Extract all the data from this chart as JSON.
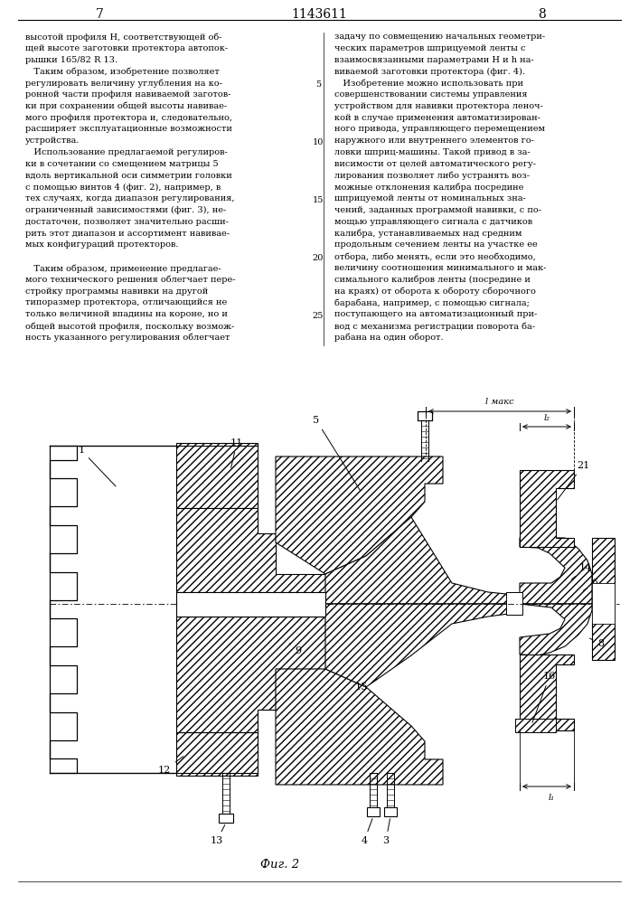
{
  "page_width": 7.07,
  "page_height": 10.0,
  "bg_color": "#ffffff",
  "header_page_left": "7",
  "header_center": "1143611",
  "header_page_right": "8",
  "col_left_lines": [
    "высотой профиля Н, соответствующей об-",
    "щей высоте заготовки протектора автопок-",
    "рышки 165/82 R 13.",
    "   Таким образом, изобретение позволяет",
    "регулировать величину углубления на ко-",
    "ронной части профиля навиваемой заготов-",
    "ки при сохранении общей высоты навивае-",
    "мого профиля протектора и, следовательно,",
    "расширяет эксплуатационные возможности",
    "устройства.",
    "   Использование предлагаемой регулиров-",
    "ки в сочетании со смещением матрицы 5",
    "вдоль вертикальной оси симметрии головки",
    "с помощью винтов 4 (фиг. 2), например, в",
    "тех случаях, когда диапазон регулирования,",
    "ограниченный зависимостями (фиг. 3), не-",
    "достаточен, позволяет значительно расши-",
    "рить этот диапазон и ассортимент навивае-",
    "мых конфигураций протекторов.",
    "",
    "   Таким образом, применение предлагае-",
    "мого технического решения облегчает пере-",
    "стройку программы навивки на другой",
    "типоразмер протектора, отличающийся не",
    "только величиной впадины на короне, но и",
    "общей высотой профиля, поскольку возмож-",
    "ность указанного регулирования облегчает"
  ],
  "col_right_lines": [
    "задачу по совмещению начальных геометри-",
    "ческих параметров шприцуемой ленты с",
    "взаимосвязанными параметрами Н и h на-",
    "виваемой заготовки протектора (фиг. 4).",
    "   Изобретение можно использовать при",
    "совершенствовании системы управления",
    "устройством для навивки протектора леноч-",
    "кой в случае применения автоматизирован-",
    "ного привода, управляющего перемещением",
    "наружного или внутреннего элементов го-",
    "ловки шприц-машины. Такой привод в за-",
    "висимости от целей автоматического регу-",
    "лирования позволяет либо устранять воз-",
    "можные отклонения калибра посредине",
    "шприцуемой ленты от номинальных зна-",
    "чений, заданных программой навивки, с по-",
    "мощью управляющего сигнала с датчиков",
    "калибра, устанавливаемых над средним",
    "продольным сечением ленты на участке ее",
    "отбора, либо менять, если это необходимо,",
    "величину соотношения минимального и мак-",
    "симального калибров ленты (посредине и",
    "на краях) от оборота к обороту сборочного",
    "барабана, например, с помощью сигнала;",
    "поступающего на автоматизационный при-",
    "вод с механизма регистрации поворота ба-",
    "рабана на один оборот."
  ],
  "fig_caption": "Фиг. 2",
  "text_color": "#000000",
  "line_color": "#000000"
}
